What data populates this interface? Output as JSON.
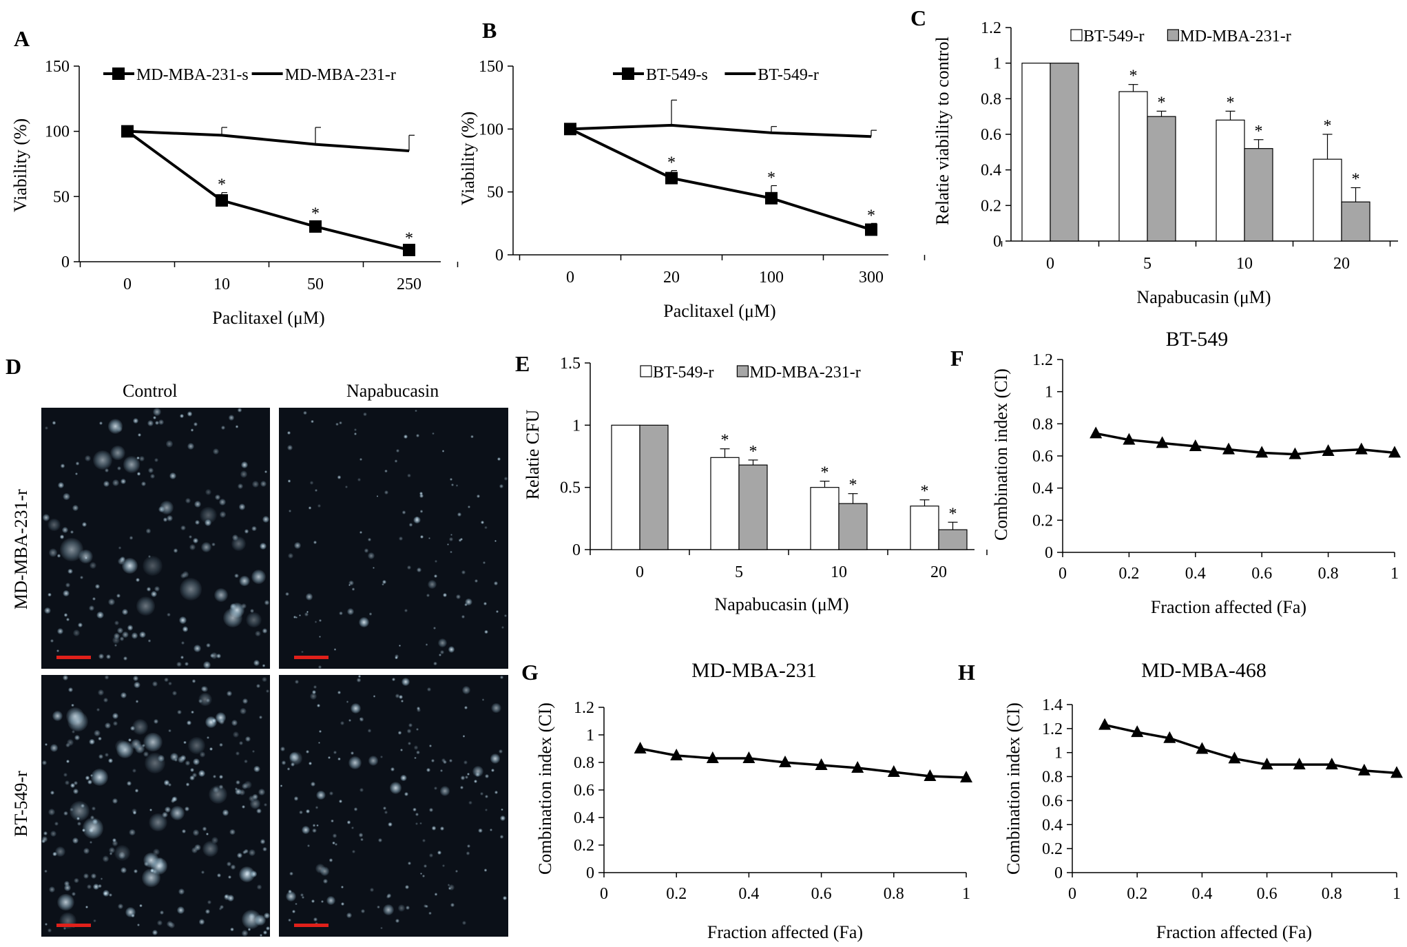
{
  "panel_letters": {
    "A": "A",
    "B": "B",
    "C": "C",
    "D": "D",
    "E": "E",
    "F": "F",
    "G": "G",
    "H": "H"
  },
  "panel_d": {
    "columns": [
      "Control",
      "Napabucasin"
    ],
    "rows": [
      "MD-MBA-231-r",
      "BT-549-r"
    ],
    "colors": {
      "background": "#0b1018",
      "scale_bar": "#e0201a"
    }
  },
  "chart_data": [
    {
      "id": "A",
      "type": "line",
      "categories": [
        "0",
        "10",
        "50",
        "250"
      ],
      "series": [
        {
          "name": "MD-MBA-231-s",
          "values": [
            100,
            47,
            27,
            9
          ],
          "errors": [
            0,
            6,
            4,
            3
          ],
          "marker": "square"
        },
        {
          "name": "MD-MBA-231-r",
          "values": [
            100,
            97,
            90,
            85
          ],
          "errors": [
            0,
            6,
            13,
            12
          ],
          "marker": "none"
        }
      ],
      "significance": [
        "",
        "*",
        "*",
        "*"
      ],
      "xlabel": "Paclitaxel (μM)",
      "ylabel": "Viability (%)",
      "ylim": [
        0,
        150
      ],
      "yticks": [
        "0",
        "50",
        "100",
        "150"
      ],
      "legend": "top"
    },
    {
      "id": "B",
      "type": "line",
      "categories": [
        "0",
        "20",
        "100",
        "300"
      ],
      "series": [
        {
          "name": "BT-549-s",
          "values": [
            100,
            61,
            45,
            20
          ],
          "errors": [
            0,
            6,
            10,
            5
          ],
          "marker": "square"
        },
        {
          "name": "BT-549-r",
          "values": [
            100,
            103,
            97,
            94
          ],
          "errors": [
            0,
            20,
            5,
            5
          ],
          "marker": "none"
        }
      ],
      "significance": [
        "",
        "*",
        "*",
        "*"
      ],
      "xlabel": "Paclitaxel (μM)",
      "ylabel": "Viability (%)",
      "ylim": [
        0,
        150
      ],
      "yticks": [
        "0",
        "50",
        "100",
        "150"
      ],
      "legend": "top"
    },
    {
      "id": "C",
      "type": "bar",
      "categories": [
        "0",
        "5",
        "10",
        "20"
      ],
      "series": [
        {
          "name": "BT-549-r",
          "values": [
            1.0,
            0.84,
            0.68,
            0.46
          ],
          "errors": [
            0,
            0.04,
            0.05,
            0.14
          ],
          "color": "#ffffff"
        },
        {
          "name": "MD-MBA-231-r",
          "values": [
            1.0,
            0.7,
            0.52,
            0.22
          ],
          "errors": [
            0,
            0.03,
            0.05,
            0.08
          ],
          "color": "#a6a6a6"
        }
      ],
      "significance": [
        "",
        "*",
        "*",
        "*"
      ],
      "xlabel": "Napabucasin (μM)",
      "ylabel": "Relatie viability  to control",
      "ylim": [
        0,
        1.2
      ],
      "yticks": [
        "0",
        "0.2",
        "0.4",
        "0.6",
        "0.8",
        "1",
        "1.2"
      ],
      "legend": "top"
    },
    {
      "id": "E",
      "type": "bar",
      "categories": [
        "0",
        "5",
        "10",
        "20"
      ],
      "series": [
        {
          "name": "BT-549-r",
          "values": [
            1.0,
            0.74,
            0.5,
            0.35
          ],
          "errors": [
            0,
            0.07,
            0.05,
            0.05
          ],
          "color": "#ffffff"
        },
        {
          "name": "MD-MBA-231-r",
          "values": [
            1.0,
            0.68,
            0.37,
            0.16
          ],
          "errors": [
            0,
            0.04,
            0.08,
            0.06
          ],
          "color": "#a6a6a6"
        }
      ],
      "significance": [
        "",
        "*",
        "*",
        "*"
      ],
      "xlabel": "Napabucasin (μM)",
      "ylabel": "Relatie CFU",
      "ylim": [
        0,
        1.5
      ],
      "yticks": [
        "0",
        "0.5",
        "1",
        "1.5"
      ],
      "legend": "top"
    },
    {
      "id": "F",
      "type": "line",
      "title": "BT-549",
      "x": [
        0.1,
        0.2,
        0.3,
        0.4,
        0.5,
        0.6,
        0.7,
        0.8,
        0.9,
        1.0
      ],
      "series": [
        {
          "values": [
            0.74,
            0.7,
            0.68,
            0.66,
            0.64,
            0.62,
            0.61,
            0.63,
            0.64,
            0.62
          ],
          "marker": "triangle"
        }
      ],
      "xlabel": "Fraction affected (Fa)",
      "ylabel": "Combination index (CI)",
      "xlim": [
        0,
        1
      ],
      "ylim": [
        0,
        1.2
      ],
      "xticks": [
        "0",
        "0.2",
        "0.4",
        "0.6",
        "0.8",
        "1"
      ],
      "yticks": [
        "0",
        "0.2",
        "0.4",
        "0.6",
        "0.8",
        "1",
        "1.2"
      ]
    },
    {
      "id": "G",
      "type": "line",
      "title": "MD-MBA-231",
      "x": [
        0.1,
        0.2,
        0.3,
        0.4,
        0.5,
        0.6,
        0.7,
        0.8,
        0.9,
        1.0
      ],
      "series": [
        {
          "values": [
            0.9,
            0.85,
            0.83,
            0.83,
            0.8,
            0.78,
            0.76,
            0.73,
            0.7,
            0.69
          ],
          "marker": "triangle"
        }
      ],
      "xlabel": "Fraction affected (Fa)",
      "ylabel": "Combination index (CI)",
      "xlim": [
        0,
        1
      ],
      "ylim": [
        0,
        1.2
      ],
      "xticks": [
        "0",
        "0.2",
        "0.4",
        "0.6",
        "0.8",
        "1"
      ],
      "yticks": [
        "0",
        "0.2",
        "0.4",
        "0.6",
        "0.8",
        "1",
        "1.2"
      ]
    },
    {
      "id": "H",
      "type": "line",
      "title": "MD-MBA-468",
      "x": [
        0.1,
        0.2,
        0.3,
        0.4,
        0.5,
        0.6,
        0.7,
        0.8,
        0.9,
        1.0
      ],
      "series": [
        {
          "values": [
            1.23,
            1.17,
            1.12,
            1.03,
            0.95,
            0.9,
            0.9,
            0.9,
            0.85,
            0.83
          ],
          "marker": "triangle"
        }
      ],
      "xlabel": "Fraction affected (Fa)",
      "ylabel": "Combination index (CI)",
      "xlim": [
        0,
        1
      ],
      "ylim": [
        0,
        1.4
      ],
      "xticks": [
        "0",
        "0.2",
        "0.4",
        "0.6",
        "0.8",
        "1"
      ],
      "yticks": [
        "0",
        "0.2",
        "0.4",
        "0.6",
        "0.8",
        "1",
        "1.2",
        "1.4"
      ]
    }
  ]
}
